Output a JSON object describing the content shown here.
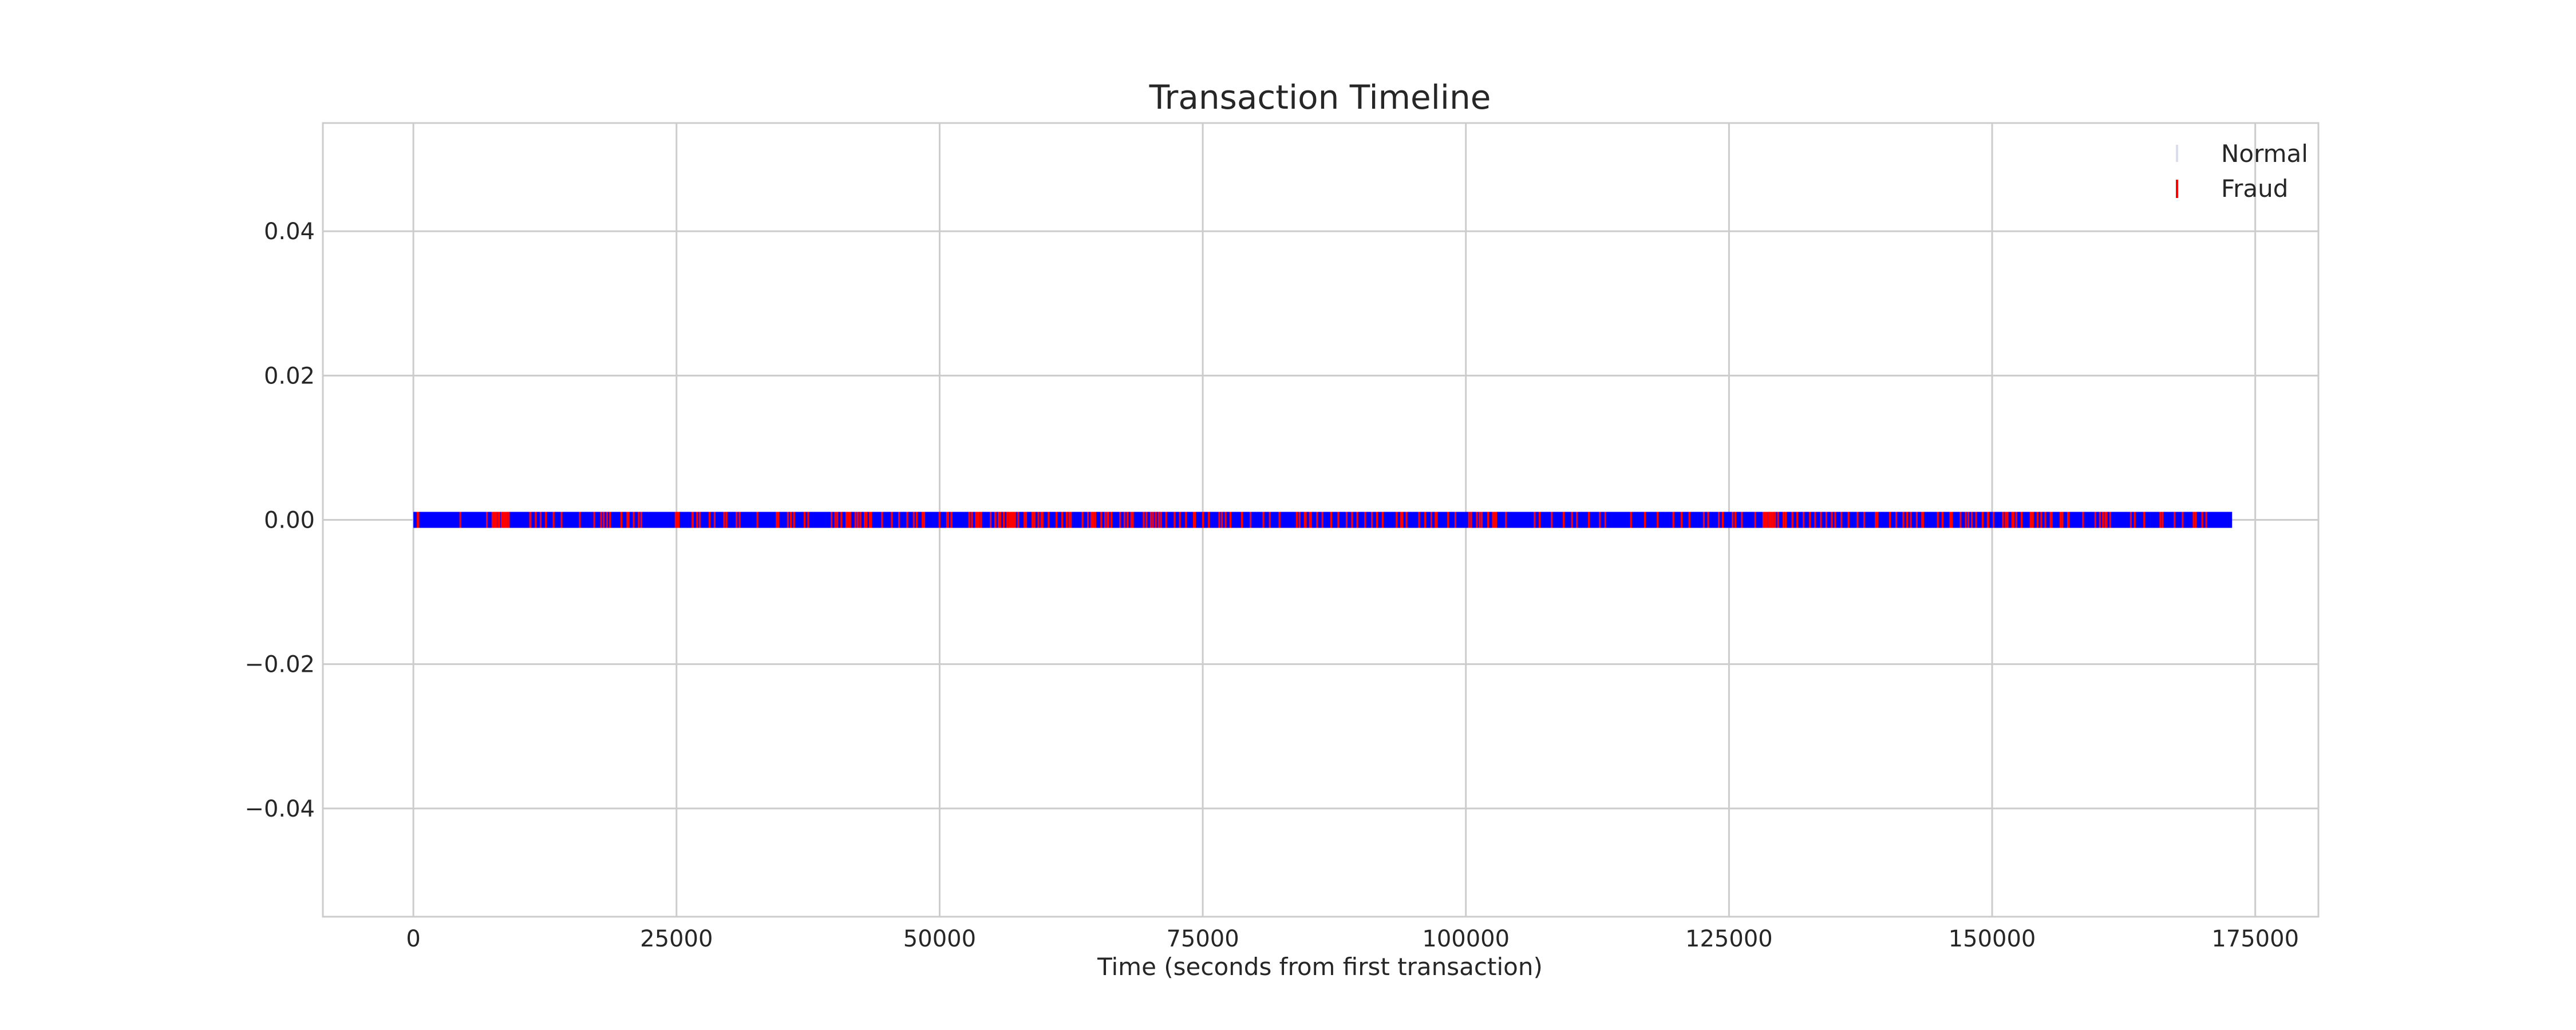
{
  "chart_data": {
    "type": "scatter",
    "title": "Transaction Timeline",
    "xlabel": "Time (seconds from first transaction)",
    "ylabel": "",
    "xlim": [
      -8600,
      181000
    ],
    "ylim": [
      -0.055,
      0.055
    ],
    "xticks": [
      0,
      25000,
      50000,
      75000,
      100000,
      125000,
      150000,
      175000
    ],
    "xtick_labels": [
      "0",
      "25000",
      "50000",
      "75000",
      "100000",
      "125000",
      "150000",
      "175000"
    ],
    "yticks": [
      0.04,
      0.02,
      0.0,
      -0.02,
      -0.04
    ],
    "ytick_labels": [
      "0.04",
      "0.02",
      "0.00",
      "−0.02",
      "−0.04"
    ],
    "grid": true,
    "legend_position": "top-right",
    "series": [
      {
        "name": "Normal",
        "color": "#0000ff",
        "marker": "vertical-line",
        "y": 0.0,
        "x_range": [
          0,
          172800
        ]
      },
      {
        "name": "Fraud",
        "color": "#ff0000",
        "marker": "vertical-line",
        "y": 0.0,
        "x": [
          406,
          472,
          4462,
          6986,
          7519,
          7526,
          7535,
          7543,
          7551,
          7610,
          7672,
          7740,
          7891,
          8090,
          8169,
          8408,
          8528,
          8614,
          8757,
          8808,
          8878,
          9064,
          11092,
          11131,
          11629,
          12093,
          12597,
          13323,
          14073,
          15817,
          17187,
          17838,
          18088,
          18399,
          18690,
          19762,
          20332,
          20451,
          20931,
          21419,
          21662,
          24920,
          25095,
          25198,
          26523,
          26556,
          26961,
          27219,
          28142,
          28625,
          29526,
          29753,
          30707,
          31002,
          32686,
          34521,
          34684,
          35585,
          35866,
          36170,
          37167,
          37517,
          39729,
          40086,
          40276,
          40662,
          41138,
          41147,
          41164,
          41181,
          41194,
          41203,
          41233,
          41237,
          41243,
          41273,
          41285,
          41305,
          41313,
          41353,
          41397,
          41413,
          41505,
          41995,
          42007,
          42223,
          42247,
          42474,
          42888,
          42985,
          43061,
          43369,
          43494,
          44532,
          45463,
          46149,
          46925,
          47545,
          47826,
          48380,
          48533,
          49985,
          50706,
          50808,
          51112,
          51135,
          52814,
          53076,
          53451,
          53591,
          53727,
          53937,
          54846,
          55279,
          55311,
          55614,
          55760,
          56098,
          56424,
          56624,
          56650,
          56806,
          56887,
          57007,
          57027,
          57163,
          57470,
          58067,
          58199,
          58217,
          58822,
          59011,
          59385,
          59669,
          59777,
          60353,
          61108,
          61646,
          62080,
          62330,
          62341,
          62467,
          63578,
          64093,
          64412,
          64443,
          64585,
          64785,
          65358,
          65728,
          65936,
          66037,
          66320,
          67150,
          67571,
          67857,
          68207,
          68357,
          69394,
          69659,
          70071,
          70270,
          70536,
          70828,
          71033,
          71521,
          72327,
          72824,
          73408,
          74159,
          74262,
          75032,
          75581,
          76575,
          76826,
          77171,
          77627,
          78725,
          79540,
          80760,
          81372,
          82289,
          83934,
          84204,
          84694,
          84789,
          85181,
          85285,
          85867,
          86376,
          87202,
          87883,
          88672,
          89190,
          89683,
          90434,
          91075,
          91554,
          92092,
          93424,
          93853,
          93860,
          93879,
          93888,
          93904,
          93920,
          93965,
          94362,
          95559,
          96135,
          96717,
          97121,
          97235,
          98311,
          99006,
          100298,
          100501,
          101051,
          101313,
          101509,
          102112,
          102572,
          102625,
          102669,
          102676,
          102864,
          103808,
          106531,
          107011,
          108158,
          109298,
          110087,
          110552,
          111690,
          112728,
          113250,
          115690,
          117016,
          118219,
          119713,
          120505,
          121238,
          122608,
          123021,
          124036,
          124408,
          125342,
          125612,
          126219,
          127495,
          128265,
          128383,
          128489,
          128600,
          128783,
          128924,
          129095,
          129186,
          129371,
          129668,
          130183,
          130398,
          131024,
          131486,
          132086,
          132688,
          133184,
          133731,
          134247,
          134769,
          135095,
          135679,
          136355,
          137211,
          137853,
          138942,
          139107,
          140293,
          140897,
          141565,
          141925,
          142280,
          142840,
          143354,
          143434,
          144839,
          145283,
          146026,
          146179,
          146998,
          147501,
          147746,
          148074,
          148479,
          149100,
          149582,
          149640,
          150139,
          151029,
          151296,
          151462,
          151916,
          152036,
          152307,
          152802,
          153653,
          153761,
          153875,
          154309,
          154668,
          155054,
          155554,
          155662,
          156499,
          156685,
          157207,
          157284,
          158638,
          159806,
          160243,
          160537,
          160771,
          160791,
          160870,
          161219,
          163181,
          163553,
          164450,
          165981,
          166198,
          167338,
          168098,
          169142,
          169347,
          169351,
          169966,
          170348
        ]
      }
    ]
  }
}
